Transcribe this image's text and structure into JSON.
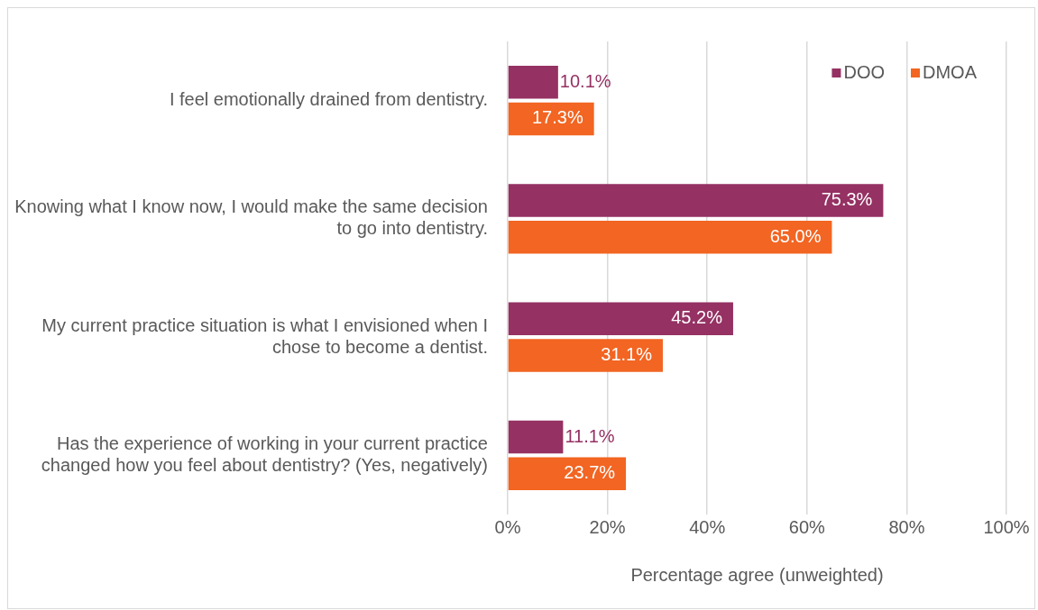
{
  "chart_data": {
    "type": "bar",
    "orientation": "horizontal",
    "categories": [
      "I feel emotionally drained from dentistry.",
      "Knowing what I know now, I would make the same decision to go into dentistry.",
      "My current practice situation is what I envisioned when I chose to become a dentist.",
      "Has the experience of working in your current practice changed how you feel about dentistry? (Yes, negatively)"
    ],
    "series": [
      {
        "name": "DOO",
        "color": "#953163",
        "values": [
          10.1,
          75.3,
          45.2,
          11.1
        ],
        "value_labels": [
          "10.1%",
          "75.3%",
          "45.2%",
          "11.1%"
        ]
      },
      {
        "name": "DMOA",
        "color": "#f26522",
        "values": [
          17.3,
          65.0,
          31.1,
          23.7
        ],
        "value_labels": [
          "17.3%",
          "65.0%",
          "31.1%",
          "23.7%"
        ]
      }
    ],
    "xlim": [
      0,
      100
    ],
    "xticks": [
      {
        "value": 0,
        "label": "0%"
      },
      {
        "value": 20,
        "label": "20%"
      },
      {
        "value": 40,
        "label": "40%"
      },
      {
        "value": 60,
        "label": "60%"
      },
      {
        "value": 80,
        "label": "80%"
      },
      {
        "value": 100,
        "label": "100%"
      }
    ],
    "xlabel": "Percentage agree (unweighted)",
    "grid": "x",
    "legend": "top right"
  }
}
